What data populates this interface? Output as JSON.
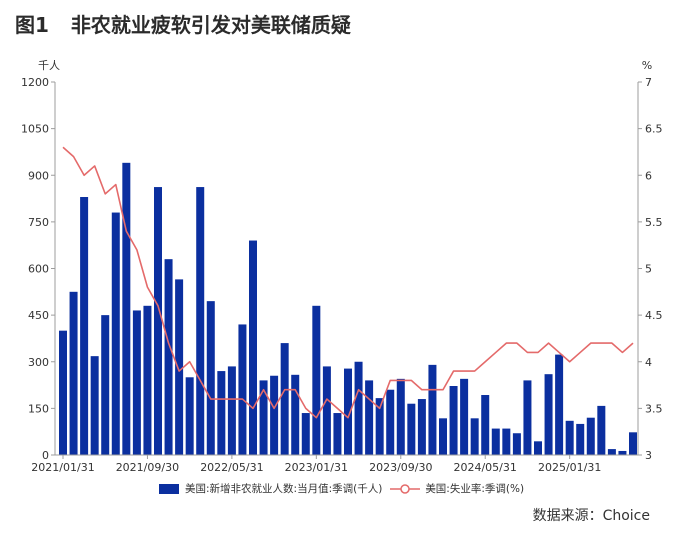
{
  "chart_data": {
    "type": "bar",
    "figure_label": "图1",
    "title": "非农就业疲软引发对美联储质疑",
    "x": [
      "2021/01/31",
      "2021/02/28",
      "2021/03/31",
      "2021/04/30",
      "2021/05/31",
      "2021/06/30",
      "2021/07/31",
      "2021/08/31",
      "2021/09/30",
      "2021/10/31",
      "2021/11/30",
      "2021/12/31",
      "2022/01/31",
      "2022/02/28",
      "2022/03/31",
      "2022/04/30",
      "2022/05/31",
      "2022/06/30",
      "2022/07/31",
      "2022/08/31",
      "2022/09/30",
      "2022/10/31",
      "2022/11/30",
      "2022/12/31",
      "2023/01/31",
      "2023/02/28",
      "2023/03/31",
      "2023/04/30",
      "2023/05/31",
      "2023/06/30",
      "2023/07/31",
      "2023/08/31",
      "2023/09/30",
      "2023/10/31",
      "2023/11/30",
      "2023/12/31",
      "2024/01/31",
      "2024/02/29",
      "2024/03/31",
      "2024/04/30",
      "2024/05/31",
      "2024/06/30",
      "2024/07/31",
      "2024/08/31",
      "2024/09/30",
      "2024/10/31",
      "2024/11/30",
      "2024/12/31",
      "2025/01/31",
      "2025/02/28",
      "2025/03/31",
      "2025/04/30",
      "2025/05/31",
      "2025/06/30",
      "2025/07/31"
    ],
    "xticks": [
      "2021/01/31",
      "2021/09/30",
      "2022/05/31",
      "2023/01/31",
      "2023/09/30",
      "2024/05/31",
      "2025/01/31"
    ],
    "y_left": {
      "unit": "千人",
      "range": [
        0,
        1200
      ],
      "ticks": [
        0,
        150,
        300,
        450,
        600,
        750,
        900,
        1050,
        1200
      ]
    },
    "y_right": {
      "unit": "%",
      "range": [
        3,
        7
      ],
      "ticks": [
        3,
        3.5,
        4,
        4.5,
        5,
        5.5,
        6,
        6.5,
        7
      ]
    },
    "series": [
      {
        "name": "美国:新增非农就业人数:当月值:季调(千人)",
        "type": "bar",
        "axis": "left",
        "color": "#0b2f9f",
        "values": [
          400,
          525,
          830,
          318,
          450,
          780,
          940,
          465,
          480,
          862,
          630,
          565,
          250,
          862,
          495,
          270,
          285,
          420,
          690,
          240,
          255,
          360,
          258,
          135,
          480,
          285,
          135,
          278,
          300,
          240,
          183,
          210,
          245,
          165,
          180,
          290,
          118,
          222,
          245,
          118,
          193,
          85,
          85,
          70,
          240,
          44,
          260,
          323,
          110,
          100,
          120,
          158,
          19,
          13,
          73
        ]
      },
      {
        "name": "美国:失业率:季调(%)",
        "type": "line",
        "axis": "right",
        "color": "#e46a6a",
        "values": [
          6.3,
          6.2,
          6.0,
          6.1,
          5.8,
          5.9,
          5.4,
          5.2,
          4.8,
          4.6,
          4.2,
          3.9,
          4.0,
          3.8,
          3.6,
          3.6,
          3.6,
          3.6,
          3.5,
          3.7,
          3.5,
          3.7,
          3.7,
          3.5,
          3.4,
          3.6,
          3.5,
          3.4,
          3.7,
          3.6,
          3.5,
          3.8,
          3.8,
          3.8,
          3.7,
          3.7,
          3.7,
          3.9,
          3.9,
          3.9,
          4.0,
          4.1,
          4.2,
          4.2,
          4.1,
          4.1,
          4.2,
          4.1,
          4.0,
          4.1,
          4.2,
          4.2,
          4.2,
          4.1,
          4.2
        ]
      }
    ],
    "grid": false,
    "legend": "bottom"
  },
  "source": "数据来源：Choice"
}
